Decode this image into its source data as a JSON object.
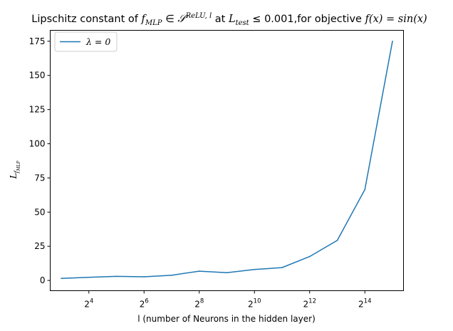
{
  "chart_data": {
    "type": "line",
    "title": {
      "pre": "Lipschitz constant of ",
      "f": "f",
      "f_sub": "MLP",
      "in": " ∈ ",
      "S": "𝒮",
      "S_sup": "ReLU, l",
      "at": " at ",
      "L": "L",
      "L_sub": "test",
      "le": " ≤ 0.001,for objective ",
      "objective": "f(x) = sin(x)"
    },
    "xlabel": "l (number of Neurons in the hidden layer)",
    "ylabel": {
      "L": "L",
      "sub": "f",
      "subsub": "MLP"
    },
    "x_scale": "log2",
    "xlim": [
      2.6,
      15.4
    ],
    "ylim": [
      -7.5,
      183
    ],
    "x_ticks": [
      {
        "exp": 4,
        "base": "2",
        "sup": "4"
      },
      {
        "exp": 6,
        "base": "2",
        "sup": "6"
      },
      {
        "exp": 8,
        "base": "2",
        "sup": "8"
      },
      {
        "exp": 10,
        "base": "2",
        "sup": "10"
      },
      {
        "exp": 12,
        "base": "2",
        "sup": "12"
      },
      {
        "exp": 14,
        "base": "2",
        "sup": "14"
      }
    ],
    "y_ticks": [
      0,
      25,
      50,
      75,
      100,
      125,
      150,
      175
    ],
    "grid": false,
    "legend": {
      "placement": "top-left"
    },
    "series": [
      {
        "name": "λ = 0",
        "color": "#1f77b4",
        "x": [
          8,
          16,
          32,
          64,
          128,
          256,
          512,
          1024,
          2048,
          4096,
          8192,
          16384,
          32768
        ],
        "y": [
          1.5,
          2.3,
          3.0,
          2.7,
          3.8,
          6.8,
          5.7,
          8.0,
          9.4,
          17.5,
          29.3,
          66.5,
          175.0
        ]
      }
    ]
  }
}
